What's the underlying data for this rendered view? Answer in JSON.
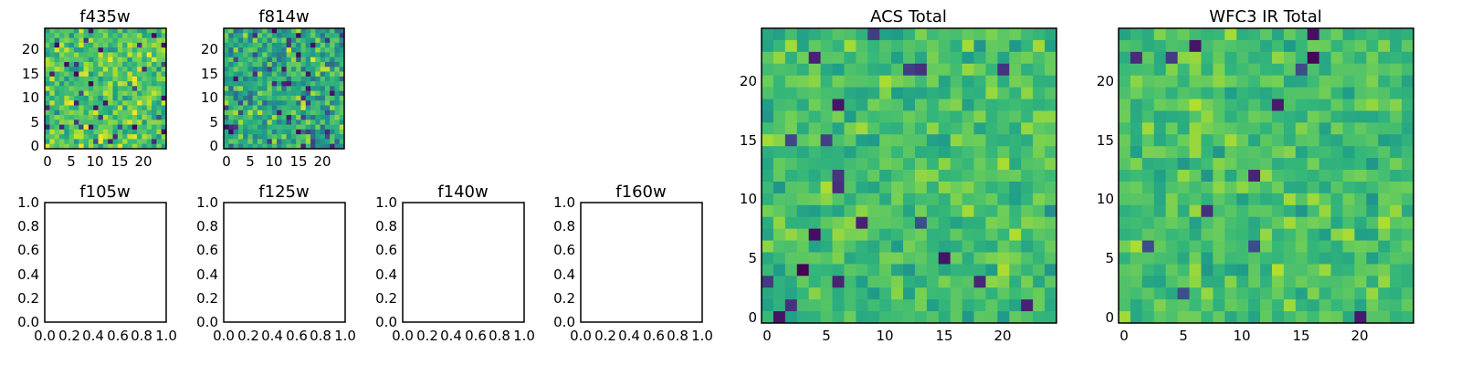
{
  "figure": {
    "colormap": "viridis",
    "colors": {
      "viridis_stops": [
        "#440154",
        "#482878",
        "#3e4989",
        "#31688e",
        "#26828e",
        "#1f9e89",
        "#35b779",
        "#6ece58",
        "#b5de2b",
        "#fde725"
      ],
      "axes": "#000000",
      "background": "#ffffff"
    }
  },
  "chart_data": [
    {
      "id": "f435w",
      "type": "heatmap",
      "title": "f435w",
      "grid_size": 25,
      "xticks": [
        "0",
        "5",
        "10",
        "15",
        "20"
      ],
      "yticks": [
        "0",
        "5",
        "10",
        "15",
        "20"
      ],
      "xlim": [
        -0.5,
        24.5
      ],
      "ylim": [
        -0.5,
        24.5
      ],
      "value_range": [
        0,
        1
      ],
      "pattern": {
        "seed": 11,
        "mean": 0.72,
        "spread": 0.22,
        "dark_fraction": 0.05
      }
    },
    {
      "id": "f814w",
      "type": "heatmap",
      "title": "f814w",
      "grid_size": 25,
      "xticks": [
        "0",
        "5",
        "10",
        "15",
        "20"
      ],
      "yticks": [
        "0",
        "5",
        "10",
        "15",
        "20"
      ],
      "xlim": [
        -0.5,
        24.5
      ],
      "ylim": [
        -0.5,
        24.5
      ],
      "value_range": [
        0,
        1
      ],
      "pattern": {
        "seed": 27,
        "mean": 0.62,
        "spread": 0.26,
        "dark_fraction": 0.07
      }
    },
    {
      "id": "f105w",
      "type": "heatmap",
      "title": "f105w",
      "empty": true,
      "xticks": [
        "0.0",
        "0.2",
        "0.4",
        "0.6",
        "0.8",
        "1.0"
      ],
      "yticks": [
        "0.0",
        "0.2",
        "0.4",
        "0.6",
        "0.8",
        "1.0"
      ],
      "xlim": [
        0,
        1
      ],
      "ylim": [
        0,
        1
      ]
    },
    {
      "id": "f125w",
      "type": "heatmap",
      "title": "f125w",
      "empty": true,
      "xticks": [
        "0.0",
        "0.2",
        "0.4",
        "0.6",
        "0.8",
        "1.0"
      ],
      "yticks": [
        "0.0",
        "0.2",
        "0.4",
        "0.6",
        "0.8",
        "1.0"
      ],
      "xlim": [
        0,
        1
      ],
      "ylim": [
        0,
        1
      ]
    },
    {
      "id": "f140w",
      "type": "heatmap",
      "title": "f140w",
      "empty": true,
      "xticks": [
        "0.0",
        "0.2",
        "0.4",
        "0.6",
        "0.8",
        "1.0"
      ],
      "yticks": [
        "0.0",
        "0.2",
        "0.4",
        "0.6",
        "0.8",
        "1.0"
      ],
      "xlim": [
        0,
        1
      ],
      "ylim": [
        0,
        1
      ]
    },
    {
      "id": "f160w",
      "type": "heatmap",
      "title": "f160w",
      "empty": true,
      "xticks": [
        "0.0",
        "0.2",
        "0.4",
        "0.6",
        "0.8",
        "1.0"
      ],
      "yticks": [
        "0.0",
        "0.2",
        "0.4",
        "0.6",
        "0.8",
        "1.0"
      ],
      "xlim": [
        0,
        1
      ],
      "ylim": [
        0,
        1
      ]
    },
    {
      "id": "acs-total",
      "type": "heatmap",
      "title": "ACS Total",
      "grid_size": 25,
      "xticks": [
        "0",
        "5",
        "10",
        "15",
        "20"
      ],
      "yticks": [
        "0",
        "5",
        "10",
        "15",
        "20"
      ],
      "xlim": [
        -0.5,
        24.5
      ],
      "ylim": [
        -0.5,
        24.5
      ],
      "value_range": [
        0,
        1
      ],
      "pattern": {
        "seed": 53,
        "mean": 0.7,
        "spread": 0.15,
        "dark_fraction": 0.03
      }
    },
    {
      "id": "wfc3-ir-total",
      "type": "heatmap",
      "title": "WFC3 IR Total",
      "grid_size": 25,
      "xticks": [
        "0",
        "5",
        "10",
        "15",
        "20"
      ],
      "yticks": [
        "0",
        "5",
        "10",
        "15",
        "20"
      ],
      "xlim": [
        -0.5,
        24.5
      ],
      "ylim": [
        -0.5,
        24.5
      ],
      "value_range": [
        0,
        1
      ],
      "pattern": {
        "seed": 91,
        "mean": 0.7,
        "spread": 0.15,
        "dark_fraction": 0.03
      }
    }
  ]
}
